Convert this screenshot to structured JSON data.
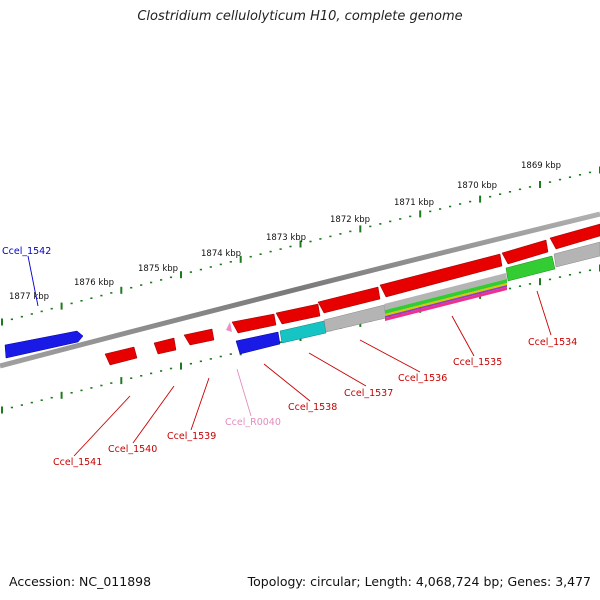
{
  "title": "Clostridium cellulolyticum H10, complete genome",
  "footer": {
    "accession": "Accession: NC_011898",
    "summary": "Topology: circular; Length: 4,068,724 bp; Genes: 3,477"
  },
  "colors": {
    "backbone": "#8c8c8c",
    "tick": "#1e7a1e",
    "gene_red": "#e60000",
    "gene_blue": "#1a1ae6",
    "gene_cyan": "#17c4c4",
    "gene_gray": "#b4b4b4",
    "gene_green": "#33cc33",
    "rna_pink": "#f08cc8",
    "label_red": "#c80000",
    "label_blue": "#0000c8",
    "label_pink": "#e58cc0"
  },
  "scale_labels": [
    "1877 kbp",
    "1876 kbp",
    "1875 kbp",
    "1874 kbp",
    "1873 kbp",
    "1872 kbp",
    "1871 kbp",
    "1870 kbp",
    "1869 kbp"
  ],
  "gene_labels": [
    {
      "name": "Ccel_1542",
      "color": "blue"
    },
    {
      "name": "Ccel_1541",
      "color": "red"
    },
    {
      "name": "Ccel_1540",
      "color": "red"
    },
    {
      "name": "Ccel_1539",
      "color": "red"
    },
    {
      "name": "Ccel_R0040",
      "color": "pink"
    },
    {
      "name": "Ccel_1538",
      "color": "red"
    },
    {
      "name": "Ccel_1537",
      "color": "red"
    },
    {
      "name": "Ccel_1536",
      "color": "red"
    },
    {
      "name": "Ccel_1535",
      "color": "red"
    },
    {
      "name": "Ccel_1534",
      "color": "red"
    }
  ]
}
